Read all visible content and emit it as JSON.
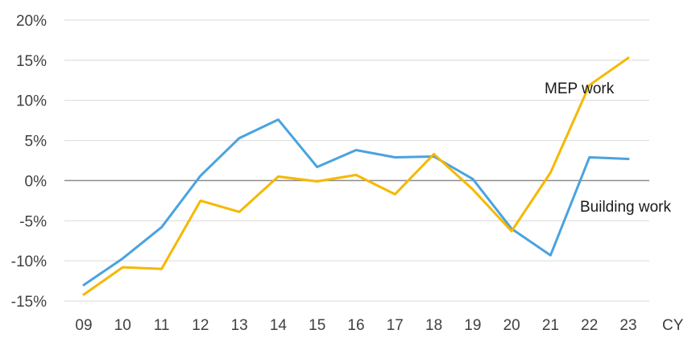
{
  "chart_data": {
    "type": "line",
    "categories": [
      "09",
      "10",
      "11",
      "12",
      "13",
      "14",
      "15",
      "16",
      "17",
      "18",
      "19",
      "20",
      "21",
      "22",
      "23"
    ],
    "xlabel": "CY",
    "ylabel": "",
    "ylim": [
      -15,
      20
    ],
    "yticks": [
      20,
      15,
      10,
      5,
      0,
      -5,
      -10,
      -15
    ],
    "ytick_labels": [
      "20%",
      "15%",
      "10%",
      "5%",
      "0%",
      "-5%",
      "-10%",
      "-15%"
    ],
    "grid": true,
    "series": [
      {
        "name": "Building work",
        "color": "#4aa3df",
        "values": [
          -13.0,
          -9.7,
          -5.8,
          0.6,
          5.3,
          7.6,
          1.7,
          3.8,
          2.9,
          3.0,
          0.2,
          -6.0,
          -9.3,
          2.9,
          2.7
        ]
      },
      {
        "name": "MEP work",
        "color": "#f5b800",
        "values": [
          -14.2,
          -10.8,
          -11.0,
          -2.5,
          -3.9,
          0.5,
          -0.1,
          0.7,
          -1.7,
          3.3,
          -1.1,
          -6.3,
          1.0,
          11.9,
          15.3
        ]
      }
    ]
  }
}
